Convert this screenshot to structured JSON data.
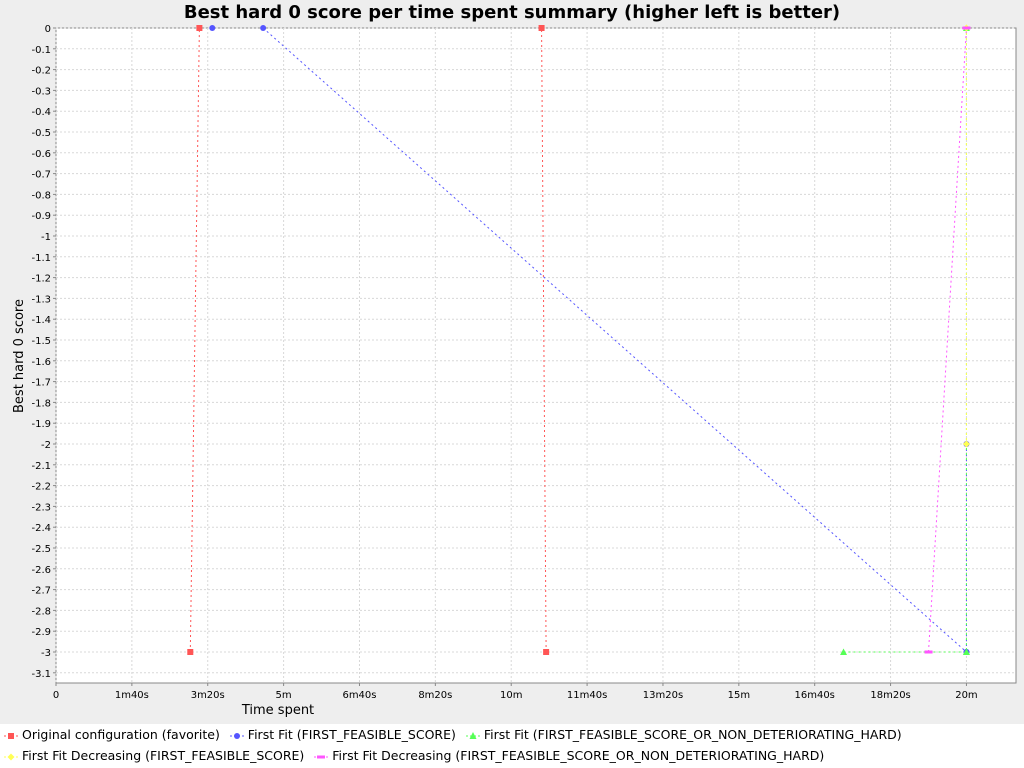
{
  "chart_data": {
    "type": "line",
    "title": "Best hard 0 score per time spent summary (higher left is better)",
    "xlabel": "Time spent",
    "ylabel": "Best hard 0 score",
    "x_unit": "seconds",
    "xlim": [
      0,
      1270
    ],
    "ylim": [
      -3.15,
      0
    ],
    "x_ticks": [
      {
        "value": 0,
        "label": "0"
      },
      {
        "value": 100,
        "label": "1m40s"
      },
      {
        "value": 200,
        "label": "3m20s"
      },
      {
        "value": 300,
        "label": "5m"
      },
      {
        "value": 400,
        "label": "6m40s"
      },
      {
        "value": 500,
        "label": "8m20s"
      },
      {
        "value": 600,
        "label": "10m"
      },
      {
        "value": 700,
        "label": "11m40s"
      },
      {
        "value": 800,
        "label": "13m20s"
      },
      {
        "value": 900,
        "label": "15m"
      },
      {
        "value": 1000,
        "label": "16m40s"
      },
      {
        "value": 1100,
        "label": "18m20s"
      },
      {
        "value": 1200,
        "label": "20m"
      }
    ],
    "y_ticks": [
      "0",
      "-0.1",
      "-0.2",
      "-0.3",
      "-0.4",
      "-0.5",
      "-0.6",
      "-0.7",
      "-0.8",
      "-0.9",
      "-1",
      "-1.1",
      "-1.2",
      "-1.3",
      "-1.4",
      "-1.5",
      "-1.6",
      "-1.7",
      "-1.8",
      "-1.9",
      "-2",
      "-2.1",
      "-2.2",
      "-2.3",
      "-2.4",
      "-2.5",
      "-2.6",
      "-2.7",
      "-2.8",
      "-2.9",
      "-3",
      "-3.1"
    ],
    "grid": true,
    "legend_position": "bottom",
    "series": [
      {
        "name": "Original configuration (favorite)",
        "color": "#ff5555",
        "marker": "square",
        "segments": [
          [
            [
              177,
              -3
            ],
            [
              189,
              0
            ]
          ],
          [
            [
              646,
              -3
            ],
            [
              640,
              0
            ]
          ]
        ]
      },
      {
        "name": "First Fit (FIRST_FEASIBLE_SCORE)",
        "color": "#5555ff",
        "marker": "circle",
        "segments": [
          [
            [
              206,
              0
            ]
          ],
          [
            [
              273,
              0
            ],
            [
              1200,
              -3
            ]
          ],
          [
            [
              1200,
              -2
            ],
            [
              1200,
              -3
            ]
          ]
        ]
      },
      {
        "name": "First Fit (FIRST_FEASIBLE_SCORE_OR_NON_DETERIORATING_HARD)",
        "color": "#55ff55",
        "marker": "triangle",
        "segments": [
          [
            [
              1038,
              -3
            ],
            [
              1200,
              -3
            ]
          ],
          [
            [
              1200,
              0
            ],
            [
              1200,
              -3
            ]
          ]
        ]
      },
      {
        "name": "First Fit Decreasing (FIRST_FEASIBLE_SCORE)",
        "color": "#ffff55",
        "marker": "diamond",
        "segments": [
          [
            [
              1200,
              0
            ],
            [
              1200,
              -2
            ]
          ]
        ]
      },
      {
        "name": "First Fit Decreasing (FIRST_FEASIBLE_SCORE_OR_NON_DETERIORATING_HARD)",
        "color": "#ff55ff",
        "marker": "dash",
        "segments": [
          [
            [
              1150,
              -3
            ],
            [
              1200,
              0
            ]
          ]
        ]
      }
    ]
  }
}
